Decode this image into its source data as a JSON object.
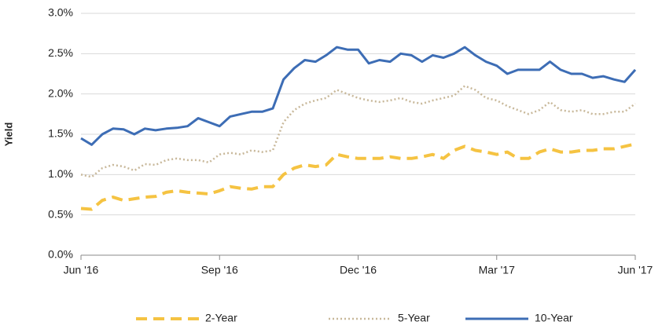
{
  "chart_data": {
    "type": "line",
    "y_label": "Yield",
    "categories": [
      "Jun '16",
      null,
      null,
      null,
      null,
      null,
      null,
      null,
      null,
      null,
      null,
      null,
      null,
      "Sep '16",
      null,
      null,
      null,
      null,
      null,
      null,
      null,
      null,
      null,
      null,
      null,
      null,
      "Dec '16",
      null,
      null,
      null,
      null,
      null,
      null,
      null,
      null,
      null,
      null,
      null,
      null,
      "Mar '17",
      null,
      null,
      null,
      null,
      null,
      null,
      null,
      null,
      null,
      null,
      null,
      null,
      "Jun '17"
    ],
    "series": [
      {
        "name": "2-Year",
        "color": "#f5c342",
        "style": "dashed",
        "values": [
          0.58,
          0.57,
          0.68,
          0.72,
          0.68,
          0.7,
          0.72,
          0.73,
          0.78,
          0.8,
          0.78,
          0.77,
          0.76,
          0.8,
          0.85,
          0.83,
          0.82,
          0.85,
          0.85,
          1.0,
          1.08,
          1.12,
          1.1,
          1.12,
          1.25,
          1.22,
          1.2,
          1.2,
          1.2,
          1.22,
          1.2,
          1.2,
          1.22,
          1.25,
          1.2,
          1.3,
          1.35,
          1.3,
          1.28,
          1.25,
          1.28,
          1.2,
          1.2,
          1.28,
          1.32,
          1.28,
          1.28,
          1.3,
          1.3,
          1.32,
          1.32,
          1.35,
          1.38
        ]
      },
      {
        "name": "5-Year",
        "color": "#c8b89a",
        "style": "dotted",
        "values": [
          1.0,
          0.97,
          1.08,
          1.12,
          1.1,
          1.05,
          1.13,
          1.12,
          1.18,
          1.2,
          1.18,
          1.18,
          1.15,
          1.25,
          1.27,
          1.25,
          1.3,
          1.28,
          1.3,
          1.65,
          1.8,
          1.88,
          1.92,
          1.95,
          2.05,
          2.0,
          1.95,
          1.92,
          1.9,
          1.92,
          1.95,
          1.9,
          1.88,
          1.92,
          1.95,
          1.98,
          2.1,
          2.05,
          1.95,
          1.92,
          1.85,
          1.8,
          1.75,
          1.8,
          1.9,
          1.8,
          1.78,
          1.8,
          1.75,
          1.75,
          1.78,
          1.78,
          1.88
        ]
      },
      {
        "name": "10-Year",
        "color": "#3d6db5",
        "style": "solid",
        "values": [
          1.45,
          1.37,
          1.5,
          1.57,
          1.56,
          1.5,
          1.57,
          1.55,
          1.57,
          1.58,
          1.6,
          1.7,
          1.65,
          1.6,
          1.72,
          1.75,
          1.78,
          1.78,
          1.82,
          2.18,
          2.32,
          2.42,
          2.4,
          2.48,
          2.58,
          2.55,
          2.55,
          2.38,
          2.42,
          2.4,
          2.5,
          2.48,
          2.4,
          2.48,
          2.45,
          2.5,
          2.58,
          2.48,
          2.4,
          2.35,
          2.25,
          2.3,
          2.3,
          2.3,
          2.4,
          2.3,
          2.25,
          2.25,
          2.2,
          2.22,
          2.18,
          2.15,
          2.3
        ]
      }
    ],
    "ylim": [
      0,
      3
    ],
    "yticks": [
      {
        "value": 0,
        "label": "0.0%"
      },
      {
        "value": 0.5,
        "label": "0.5%"
      },
      {
        "value": 1,
        "label": "1.0%"
      },
      {
        "value": 1.5,
        "label": "1.5%"
      },
      {
        "value": 2,
        "label": "2.0%"
      },
      {
        "value": 2.5,
        "label": "2.5%"
      },
      {
        "value": 3,
        "label": "3.0%"
      }
    ],
    "grid": true,
    "legend": "bottom"
  }
}
